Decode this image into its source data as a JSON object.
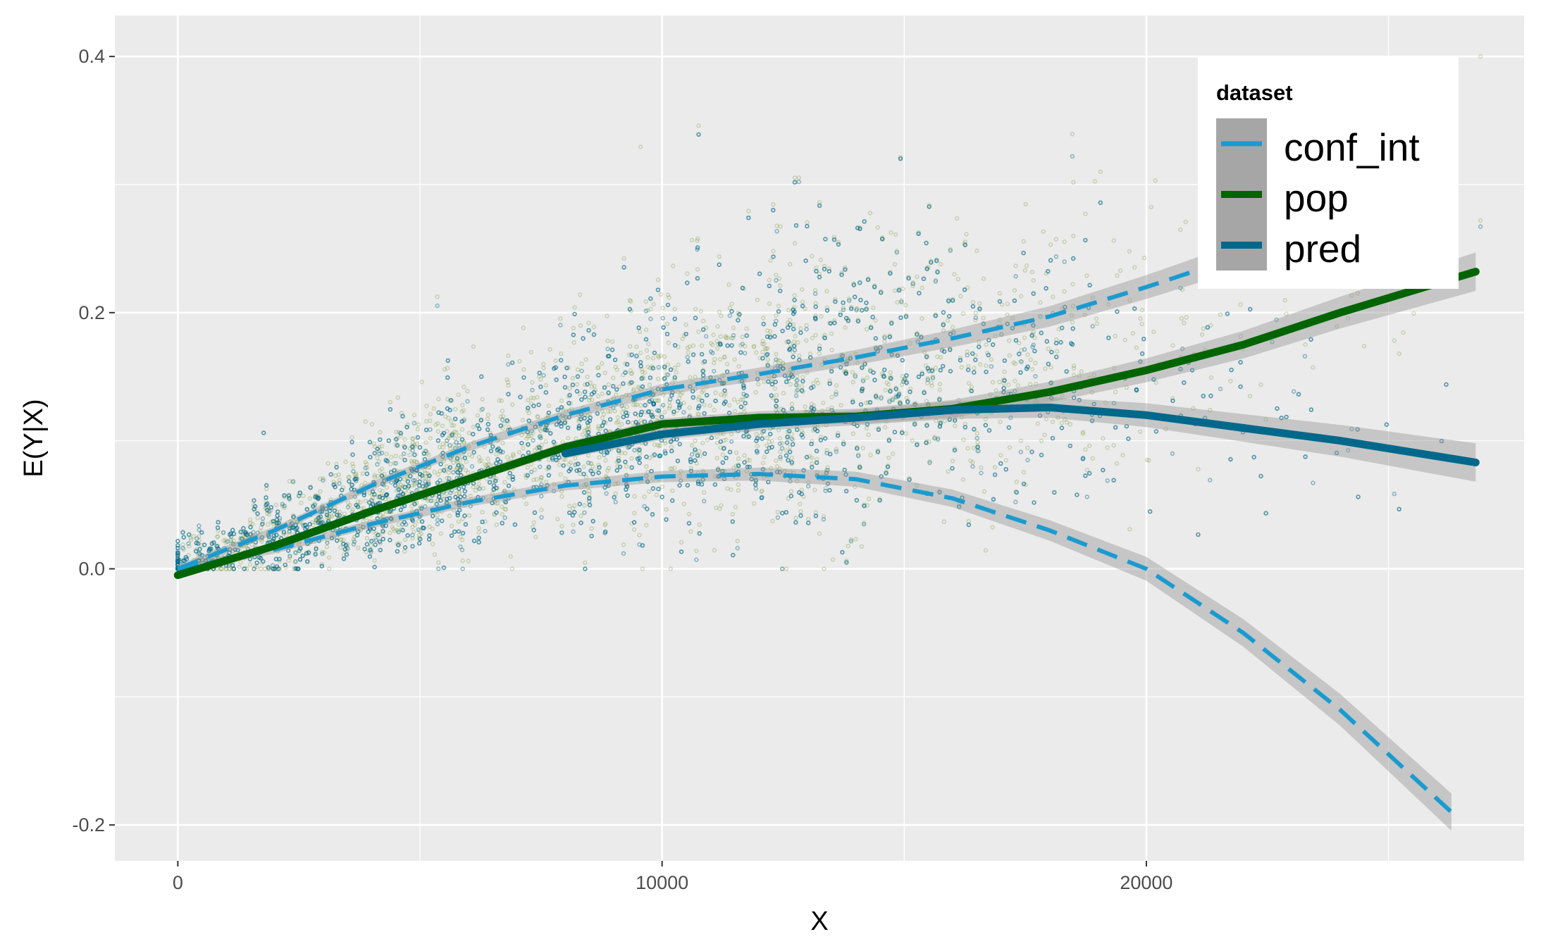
{
  "chart_data": {
    "type": "line",
    "title": "",
    "xlabel": "X",
    "ylabel": "E(Y|X)",
    "xlim": [
      -1300,
      27800
    ],
    "ylim": [
      -0.228,
      0.432
    ],
    "x_ticks": [
      0,
      10000,
      20000
    ],
    "x_tick_labels": [
      "0",
      "10000",
      "20000"
    ],
    "y_ticks": [
      -0.2,
      0.0,
      0.2,
      0.4
    ],
    "y_tick_labels": [
      "-0.2",
      "0.0",
      "0.2",
      "0.4"
    ],
    "grid": true,
    "legend": {
      "title": "dataset",
      "position": "top-right",
      "entries": [
        "conf_int",
        "pop",
        "pred"
      ]
    },
    "series": [
      {
        "name": "conf_int",
        "style": "dashed",
        "color": "#1a9bd0",
        "role": "upper",
        "x": [
          0,
          2000,
          4000,
          6000,
          8000,
          10000,
          12000,
          14000,
          16000,
          18000,
          20000,
          22000,
          24000,
          26300
        ],
        "y": [
          0.0,
          0.03,
          0.065,
          0.095,
          0.12,
          0.14,
          0.152,
          0.165,
          0.18,
          0.197,
          0.22,
          0.245,
          0.27,
          0.3
        ]
      },
      {
        "name": "conf_int",
        "style": "dashed",
        "color": "#1a9bd0",
        "role": "lower",
        "x": [
          0,
          2000,
          4000,
          6000,
          8000,
          10000,
          12000,
          14000,
          16000,
          18000,
          20000,
          22000,
          24000,
          26300
        ],
        "y": [
          0.0,
          0.015,
          0.035,
          0.052,
          0.065,
          0.072,
          0.074,
          0.07,
          0.055,
          0.03,
          0.0,
          -0.05,
          -0.11,
          -0.19
        ]
      },
      {
        "name": "pop",
        "style": "solid",
        "color": "#006400",
        "x": [
          0,
          2000,
          4000,
          6000,
          8000,
          10000,
          12000,
          14000,
          16000,
          18000,
          20000,
          22000,
          24000,
          26800
        ],
        "y": [
          -0.005,
          0.018,
          0.045,
          0.07,
          0.095,
          0.113,
          0.118,
          0.119,
          0.125,
          0.138,
          0.155,
          0.175,
          0.2,
          0.232
        ]
      },
      {
        "name": "pred",
        "style": "solid",
        "color": "#00688b",
        "x": [
          8000,
          10000,
          12000,
          14000,
          16000,
          18000,
          20000,
          22000,
          24000,
          26800
        ],
        "y": [
          0.09,
          0.105,
          0.113,
          0.118,
          0.124,
          0.126,
          0.12,
          0.11,
          0.1,
          0.083
        ]
      }
    ],
    "scatter": {
      "description_note": "dense semi-transparent point clouds for pop (green) and pred (teal), x range 0 to 27000, y range about 0 to 0.4",
      "pop_color": "#6b8e23",
      "pred_color": "#00688b"
    }
  }
}
